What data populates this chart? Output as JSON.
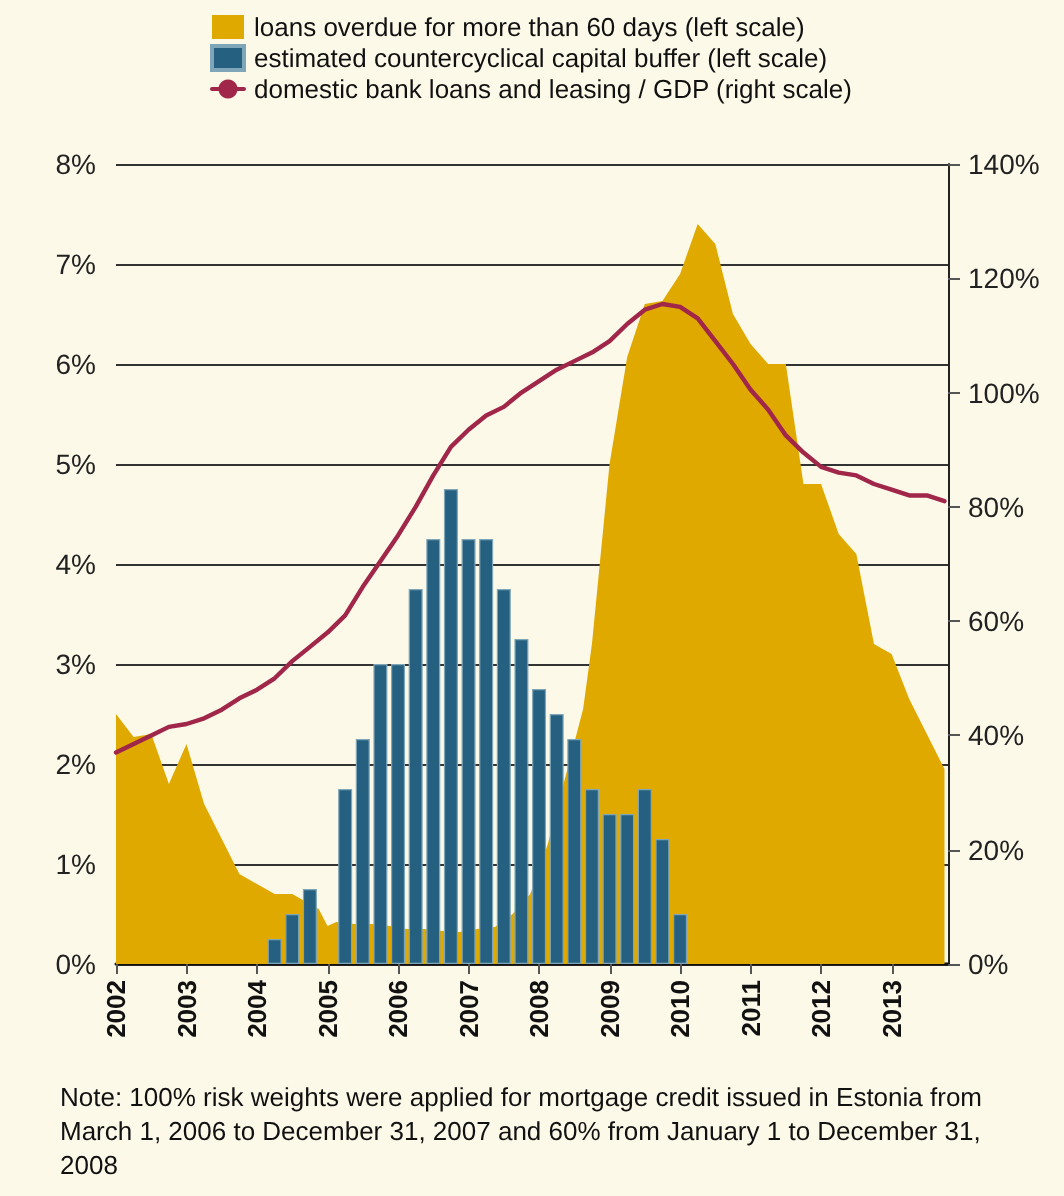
{
  "chart_data": {
    "type": "area",
    "xlim": [
      2002,
      2013.8
    ],
    "xticks": [
      2002,
      2003,
      2004,
      2005,
      2006,
      2007,
      2008,
      2009,
      2010,
      2011,
      2012,
      2013
    ],
    "ylim": [
      0,
      8
    ],
    "yticks": [
      {
        "value": 0,
        "label": "0%"
      },
      {
        "value": 1,
        "label": "1%"
      },
      {
        "value": 2,
        "label": "2%"
      },
      {
        "value": 3,
        "label": "3%"
      },
      {
        "value": 4,
        "label": "4%"
      },
      {
        "value": 5,
        "label": "5%"
      },
      {
        "value": 6,
        "label": "6%"
      },
      {
        "value": 7,
        "label": "7%"
      },
      {
        "value": 8,
        "label": "8%"
      }
    ],
    "y2lim": [
      0,
      140
    ],
    "y2ticks": [
      {
        "value": 0,
        "label": "0%"
      },
      {
        "value": 20,
        "label": "20%"
      },
      {
        "value": 40,
        "label": "40%"
      },
      {
        "value": 60,
        "label": "60%"
      },
      {
        "value": 80,
        "label": "80%"
      },
      {
        "value": 100,
        "label": "100%"
      },
      {
        "value": 120,
        "label": "120%"
      },
      {
        "value": 140,
        "label": "140%"
      }
    ],
    "grid": "y",
    "legend": "top",
    "marker": "none",
    "series": [
      {
        "name": "loans overdue for more than 60 days (left scale)",
        "color": "#dfa900",
        "x": [
          2002,
          2002.25,
          2002.5,
          2002.75,
          2003,
          2003.25,
          2003.5,
          2003.75,
          2004,
          2004.25,
          2004.5,
          2004.875,
          2005,
          2005.125,
          2005.375,
          2005.625,
          2005.875,
          2006.125,
          2006.375,
          2006.625,
          2006.875,
          2007.125,
          2007.375,
          2007.625,
          2007.875,
          2008.125,
          2008.625,
          2008.75,
          2009,
          2009.25,
          2009.5,
          2009.75,
          2010,
          2010.25,
          2010.5,
          2010.75,
          2011,
          2011.25,
          2011.5,
          2011.75,
          2012,
          2012.25,
          2012.5,
          2012.75,
          2013,
          2013.25,
          2013.5,
          2013.75
        ],
        "values": [
          2.5,
          2.27,
          2.3,
          1.8,
          2.2,
          1.6,
          1.25,
          0.9,
          0.8,
          0.7,
          0.7,
          0.55,
          0.38,
          0.42,
          0.4,
          0.4,
          0.38,
          0.35,
          0.35,
          0.33,
          0.32,
          0.35,
          0.37,
          0.5,
          0.7,
          1.2,
          2.55,
          3.2,
          5.0,
          6.07,
          6.6,
          6.63,
          6.9,
          7.4,
          7.2,
          6.5,
          6.2,
          6.0,
          6.0,
          4.8,
          4.8,
          4.3,
          4.1,
          3.2,
          3.1,
          2.65,
          2.3,
          1.95
        ]
      },
      {
        "name": "estimated countercyclical capital buffer (left scale)",
        "type": "bar",
        "color": "#256080",
        "x": [
          2004.25,
          2004.5,
          2004.75,
          2005.25,
          2005.5,
          2005.75,
          2006,
          2006.25,
          2006.5,
          2006.75,
          2007,
          2007.25,
          2007.5,
          2007.75,
          2008,
          2008.25,
          2008.5,
          2008.75,
          2009,
          2009.25,
          2009.5,
          2009.75,
          2010
        ],
        "values": [
          0.25,
          0.5,
          0.75,
          1.75,
          2.25,
          3.0,
          3.0,
          3.75,
          4.25,
          4.75,
          4.25,
          4.25,
          3.75,
          3.25,
          2.75,
          2.5,
          2.25,
          1.75,
          1.5,
          1.5,
          1.75,
          1.25,
          0.5
        ]
      },
      {
        "name": "domestic bank loans and leasing / GDP (right scale)",
        "type": "line",
        "axis": "y2",
        "color": "#a0264a",
        "line_style": "solid",
        "x": [
          2002,
          2002.25,
          2002.5,
          2002.75,
          2003,
          2003.25,
          2003.5,
          2003.75,
          2004,
          2004.25,
          2004.5,
          2004.75,
          2005,
          2005.25,
          2005.5,
          2005.75,
          2006,
          2006.25,
          2006.5,
          2006.75,
          2007,
          2007.25,
          2007.5,
          2007.75,
          2008,
          2008.25,
          2008.5,
          2008.75,
          2009,
          2009.25,
          2009.5,
          2009.75,
          2010,
          2010.25,
          2010.5,
          2010.75,
          2011,
          2011.25,
          2011.5,
          2011.75,
          2012,
          2012.25,
          2012.5,
          2012.75,
          2013,
          2013.25,
          2013.5,
          2013.75
        ],
        "values": [
          37,
          38.5,
          40,
          41.5,
          42,
          43,
          44.5,
          46.5,
          48,
          50,
          53,
          55.5,
          58,
          61,
          66,
          70.5,
          75,
          80,
          85.5,
          90.5,
          93.5,
          96,
          97.5,
          100,
          102,
          104,
          105.5,
          107,
          109,
          112,
          114.5,
          115.5,
          115,
          113,
          109,
          105,
          100.5,
          97,
          92.5,
          89.5,
          87,
          86,
          85.5,
          84,
          83,
          82,
          82,
          81
        ]
      }
    ],
    "annotations": [
      "Note: 100% risk weights were applied for mortgage credit issued in Estonia from March 1, 2006 to December 31, 2007 and 60% from January 1 to December 31, 2008"
    ]
  }
}
